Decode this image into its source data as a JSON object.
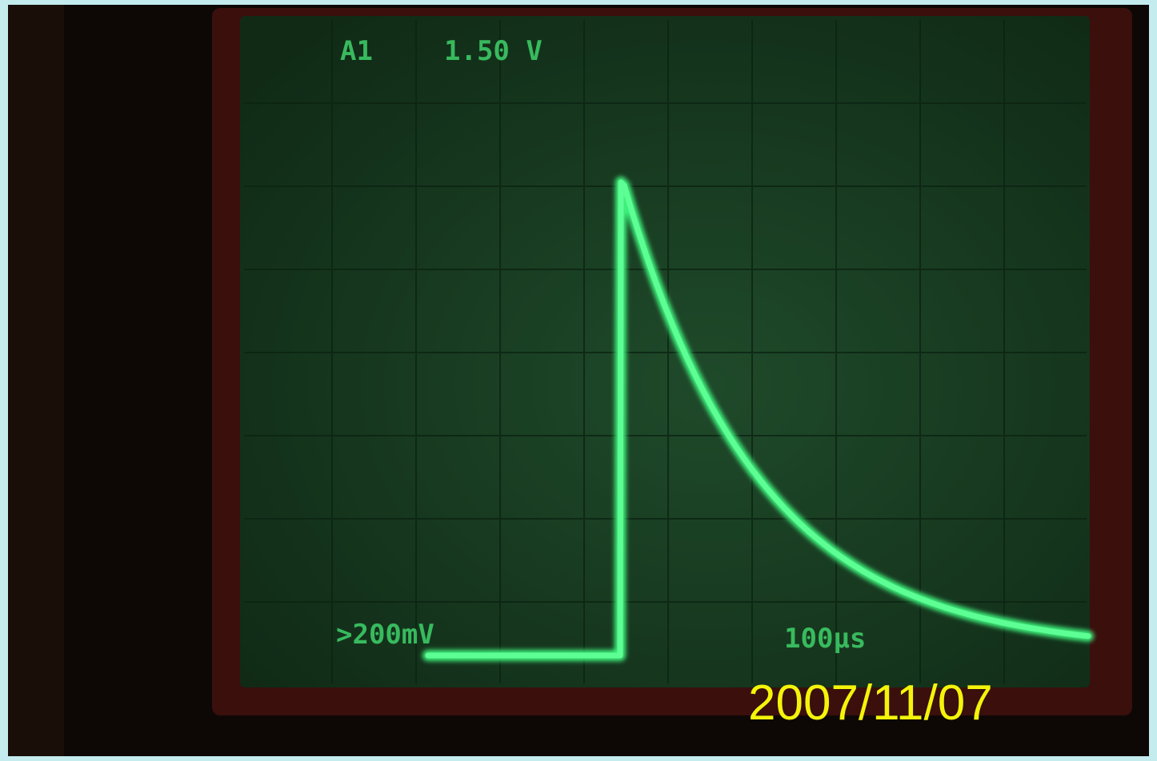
{
  "screen": {
    "channel": "A1",
    "trigger_level": "1.50 V",
    "volts_per_div": ">200mV",
    "time_per_div": "100µs"
  },
  "date_stamp": "2007/11/07"
}
